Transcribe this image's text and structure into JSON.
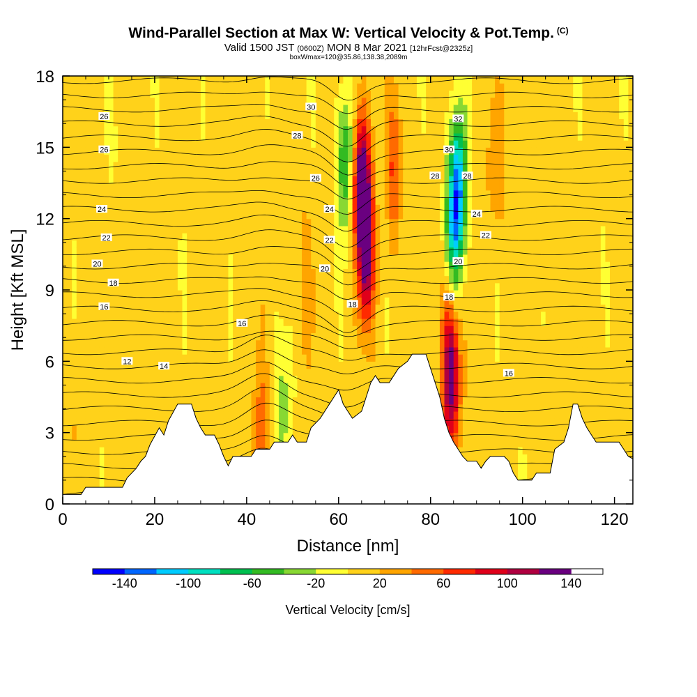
{
  "chart_data": {
    "type": "heatmap",
    "title": "Wind-Parallel Section at Max W: Vertical Velocity & Pot.Temp.",
    "title_mark": "(C)",
    "subtitle_prefix": "Valid 1500 JST",
    "subtitle_utc": "(0600Z)",
    "subtitle_date": "MON 8 Mar 2021",
    "subtitle_fcst": "[12hrFcst@2325z]",
    "subtitle2": "boxWmax=120@35.86,138.38,2089m",
    "xlabel": "Distance [nm]",
    "ylabel": "Height [Kft MSL]",
    "xlim": [
      0,
      124
    ],
    "ylim": [
      0,
      18
    ],
    "x_ticks": [
      0,
      20,
      40,
      60,
      80,
      100,
      120
    ],
    "y_ticks": [
      0,
      3,
      6,
      9,
      12,
      15,
      18
    ],
    "colorbar": {
      "label": "Vertical Velocity [cm/s]",
      "min": -160,
      "max": 160,
      "step": 20,
      "tick_values": [
        -140,
        -100,
        -60,
        -20,
        20,
        60,
        100,
        140
      ],
      "colors": [
        "#0000ff",
        "#0066ff",
        "#00ccff",
        "#00e0c0",
        "#00c050",
        "#33bb22",
        "#88d833",
        "#ffff33",
        "#ffd21a",
        "#ffa500",
        "#ff6a00",
        "#ff2a00",
        "#e0001a",
        "#b00040",
        "#6a0080"
      ]
    },
    "terrain_kft": [
      [
        0,
        0.4
      ],
      [
        4,
        0.4
      ],
      [
        5,
        0.7
      ],
      [
        13,
        0.7
      ],
      [
        14,
        1.1
      ],
      [
        15,
        1.3
      ],
      [
        16,
        1.5
      ],
      [
        17,
        1.8
      ],
      [
        18,
        2.0
      ],
      [
        19,
        2.5
      ],
      [
        21,
        3.2
      ],
      [
        22,
        2.9
      ],
      [
        23,
        3.5
      ],
      [
        25,
        4.2
      ],
      [
        28,
        4.2
      ],
      [
        29,
        3.6
      ],
      [
        30,
        3.2
      ],
      [
        31,
        2.9
      ],
      [
        33,
        2.9
      ],
      [
        34,
        2.5
      ],
      [
        35,
        2.0
      ],
      [
        36,
        1.6
      ],
      [
        37,
        2.0
      ],
      [
        41,
        2.0
      ],
      [
        42,
        2.3
      ],
      [
        45,
        2.3
      ],
      [
        46,
        2.6
      ],
      [
        49,
        2.6
      ],
      [
        50,
        2.9
      ],
      [
        51,
        2.6
      ],
      [
        53,
        2.6
      ],
      [
        54,
        3.2
      ],
      [
        56,
        3.6
      ],
      [
        57,
        3.9
      ],
      [
        58,
        4.2
      ],
      [
        59,
        4.5
      ],
      [
        60,
        4.8
      ],
      [
        61,
        4.2
      ],
      [
        62,
        3.9
      ],
      [
        63,
        3.6
      ],
      [
        65,
        3.9
      ],
      [
        66,
        4.5
      ],
      [
        67,
        5.1
      ],
      [
        68,
        5.4
      ],
      [
        69,
        5.1
      ],
      [
        71,
        5.1
      ],
      [
        72,
        5.4
      ],
      [
        73,
        5.7
      ],
      [
        75,
        6.0
      ],
      [
        76,
        6.3
      ],
      [
        79,
        6.3
      ],
      [
        80,
        5.7
      ],
      [
        81,
        5.1
      ],
      [
        82,
        4.5
      ],
      [
        83,
        3.6
      ],
      [
        84,
        3.0
      ],
      [
        85,
        2.6
      ],
      [
        86,
        2.3
      ],
      [
        87,
        2.0
      ],
      [
        88,
        1.8
      ],
      [
        90,
        1.8
      ],
      [
        91,
        1.5
      ],
      [
        92,
        1.8
      ],
      [
        93,
        2.0
      ],
      [
        96,
        2.0
      ],
      [
        97,
        1.8
      ],
      [
        98,
        1.3
      ],
      [
        99,
        1.0
      ],
      [
        102,
        1.0
      ],
      [
        103,
        1.3
      ],
      [
        106,
        1.3
      ],
      [
        107,
        2.3
      ],
      [
        109,
        2.6
      ],
      [
        110,
        3.2
      ],
      [
        111,
        4.2
      ],
      [
        112,
        4.2
      ],
      [
        113,
        3.6
      ],
      [
        114,
        3.2
      ],
      [
        115,
        2.9
      ],
      [
        116,
        2.6
      ],
      [
        121,
        2.6
      ],
      [
        122,
        2.3
      ],
      [
        123,
        2.0
      ],
      [
        124,
        1.9
      ]
    ],
    "w_features_cm_s": [
      {
        "x": 65,
        "z": 13.5,
        "w": 140
      },
      {
        "x": 66,
        "z": 10.5,
        "w": 110
      },
      {
        "x": 61.5,
        "z": 14.5,
        "w": -70
      },
      {
        "x": 86,
        "z": 13.5,
        "w": -120
      },
      {
        "x": 85,
        "z": 11,
        "w": -80
      },
      {
        "x": 84.5,
        "z": 5,
        "w": 110
      },
      {
        "x": 84,
        "z": 7.5,
        "w": 50
      },
      {
        "x": 72,
        "z": 14,
        "w": 50
      },
      {
        "x": 94,
        "z": 14,
        "w": 30
      },
      {
        "x": 43,
        "z": 2.8,
        "w": 50
      },
      {
        "x": 48,
        "z": 3.8,
        "w": -40
      },
      {
        "x": 53,
        "z": 9,
        "w": 20
      },
      {
        "x": 10,
        "z": 16,
        "w": -10
      },
      {
        "x": 3,
        "z": 4,
        "w": 15
      }
    ],
    "theta_contour_labels": [
      "26",
      "26",
      "24",
      "22",
      "20",
      "18",
      "16",
      "12",
      "14",
      "16",
      "30",
      "28",
      "26",
      "24",
      "22",
      "20",
      "18",
      "32",
      "30",
      "28",
      "28",
      "24",
      "22",
      "20",
      "18",
      "16"
    ]
  }
}
